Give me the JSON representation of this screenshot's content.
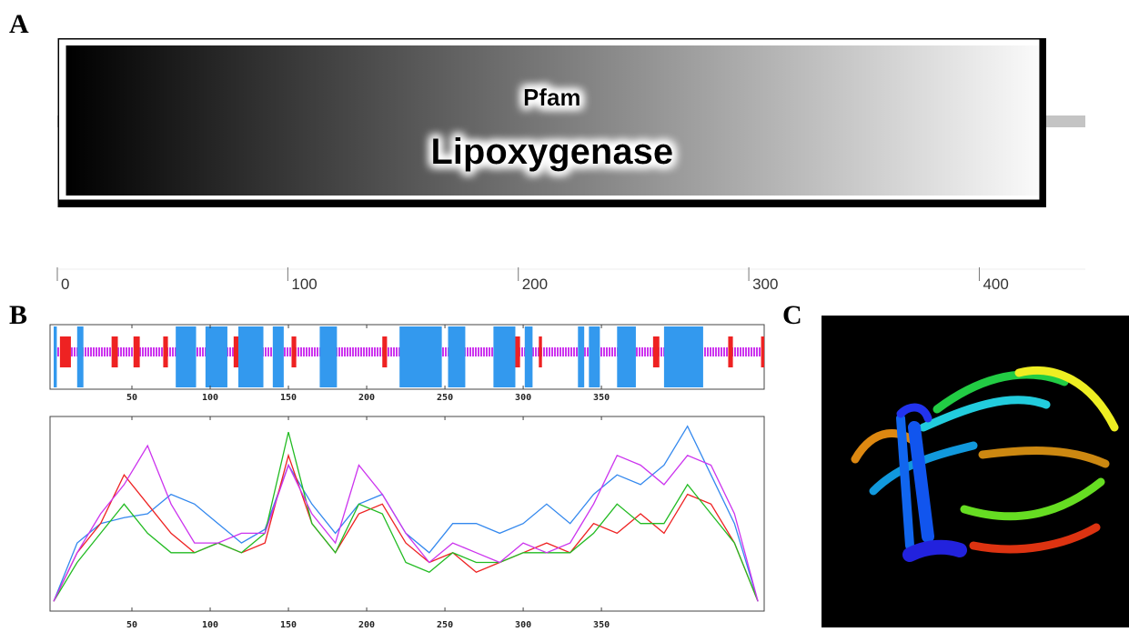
{
  "figure": {
    "panel_labels": [
      "A",
      "B",
      "C"
    ]
  },
  "chart_data": [
    {
      "type": "domain",
      "length": 446,
      "xlim": [
        0,
        446
      ],
      "xticks": [
        0,
        100,
        200,
        300,
        400
      ],
      "domains": [
        {
          "source": "Pfam",
          "name": "Lipoxygenase",
          "start": 1,
          "end": 429
        }
      ]
    },
    {
      "type": "secondary-structure",
      "xlim": [
        0,
        454
      ],
      "xticks": [
        50,
        100,
        150,
        200,
        250,
        300,
        350
      ],
      "helix_color": "#3399ee",
      "strand_color": "#ee2222",
      "coil_color": "#cc33ee",
      "helices": [
        [
          0,
          2
        ],
        [
          15,
          19
        ],
        [
          78,
          91
        ],
        [
          97,
          111
        ],
        [
          118,
          134
        ],
        [
          140,
          147
        ],
        [
          170,
          181
        ],
        [
          221,
          248
        ],
        [
          252,
          263
        ],
        [
          281,
          295
        ],
        [
          301,
          306
        ],
        [
          335,
          339
        ],
        [
          342,
          349
        ],
        [
          360,
          372
        ],
        [
          390,
          415
        ]
      ],
      "strands": [
        [
          4,
          11
        ],
        [
          37,
          41
        ],
        [
          51,
          55
        ],
        [
          70,
          73
        ],
        [
          115,
          118
        ],
        [
          152,
          155
        ],
        [
          210,
          213
        ],
        [
          294,
          298
        ],
        [
          310,
          312
        ],
        [
          383,
          387
        ],
        [
          431,
          434
        ],
        [
          452,
          454
        ]
      ]
    },
    {
      "type": "line",
      "xlim": [
        0,
        454
      ],
      "ylim": [
        0,
        1
      ],
      "xticks": [
        50,
        100,
        150,
        200,
        250,
        300,
        350
      ],
      "x": [
        0,
        15,
        30,
        45,
        60,
        75,
        90,
        105,
        120,
        135,
        150,
        165,
        180,
        195,
        210,
        225,
        240,
        255,
        270,
        285,
        300,
        315,
        330,
        345,
        360,
        375,
        390,
        405,
        420,
        435,
        450
      ],
      "series": [
        {
          "color": "#3388ee",
          "values": [
            0.05,
            0.35,
            0.45,
            0.48,
            0.5,
            0.6,
            0.55,
            0.45,
            0.35,
            0.42,
            0.75,
            0.55,
            0.4,
            0.55,
            0.6,
            0.4,
            0.3,
            0.45,
            0.45,
            0.4,
            0.45,
            0.55,
            0.45,
            0.6,
            0.7,
            0.65,
            0.75,
            0.95,
            0.7,
            0.45,
            0.05
          ]
        },
        {
          "color": "#ee2222",
          "values": [
            0.05,
            0.3,
            0.45,
            0.7,
            0.55,
            0.4,
            0.3,
            0.35,
            0.3,
            0.35,
            0.8,
            0.45,
            0.3,
            0.5,
            0.55,
            0.35,
            0.25,
            0.3,
            0.2,
            0.25,
            0.3,
            0.35,
            0.3,
            0.45,
            0.4,
            0.5,
            0.4,
            0.6,
            0.55,
            0.35,
            0.05
          ]
        },
        {
          "color": "#22bb22",
          "values": [
            0.05,
            0.25,
            0.4,
            0.55,
            0.4,
            0.3,
            0.3,
            0.35,
            0.3,
            0.4,
            0.92,
            0.45,
            0.3,
            0.55,
            0.5,
            0.25,
            0.2,
            0.3,
            0.25,
            0.25,
            0.3,
            0.3,
            0.3,
            0.4,
            0.55,
            0.45,
            0.45,
            0.65,
            0.5,
            0.35,
            0.05
          ]
        },
        {
          "color": "#cc33ee",
          "values": [
            0.05,
            0.3,
            0.5,
            0.65,
            0.85,
            0.55,
            0.35,
            0.35,
            0.4,
            0.4,
            0.75,
            0.5,
            0.35,
            0.75,
            0.6,
            0.4,
            0.25,
            0.35,
            0.3,
            0.25,
            0.35,
            0.3,
            0.35,
            0.55,
            0.8,
            0.75,
            0.65,
            0.8,
            0.75,
            0.5,
            0.05
          ]
        }
      ]
    }
  ]
}
